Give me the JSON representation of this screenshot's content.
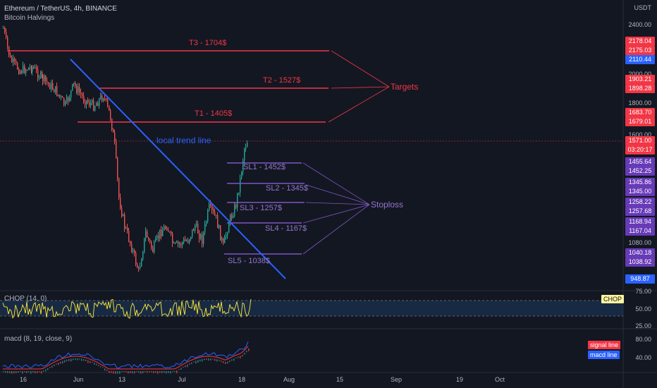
{
  "header": {
    "symbol_line": "Ethereum / TetherUS, 4h, BINANCE",
    "indicator_line": "Bitcoin Halvings"
  },
  "price_axis": {
    "unit": "USDT",
    "ticks": [
      "2400.00",
      "2000.00",
      "1800.00",
      "1600.00",
      "1080.00"
    ]
  },
  "price_badges": [
    {
      "label": "2178.04",
      "color": "#f23645"
    },
    {
      "label": "2175.03",
      "color": "#f23645"
    },
    {
      "label": "2110.44",
      "color": "#2962ff"
    },
    {
      "label": "1903.21",
      "color": "#f23645"
    },
    {
      "label": "1898.28",
      "color": "#f23645"
    },
    {
      "label": "1683.70",
      "color": "#f23645"
    },
    {
      "label": "1679.01",
      "color": "#f23645"
    },
    {
      "label": "1571.00",
      "color": "#f23645"
    },
    {
      "label": "03:20:17",
      "color": "#f23645"
    },
    {
      "label": "1455.64",
      "color": "#673ab7"
    },
    {
      "label": "1452.25",
      "color": "#673ab7"
    },
    {
      "label": "1345.86",
      "color": "#673ab7"
    },
    {
      "label": "1345.00",
      "color": "#673ab7"
    },
    {
      "label": "1258.22",
      "color": "#673ab7"
    },
    {
      "label": "1257.68",
      "color": "#673ab7"
    },
    {
      "label": "1168.94",
      "color": "#673ab7"
    },
    {
      "label": "1167.04",
      "color": "#673ab7"
    },
    {
      "label": "1040.18",
      "color": "#673ab7"
    },
    {
      "label": "1038.92",
      "color": "#673ab7"
    },
    {
      "label": "948.87",
      "color": "#2962ff"
    }
  ],
  "targets": [
    {
      "label": "T3 - 1704$"
    },
    {
      "label": "T2 - 1527$"
    },
    {
      "label": "T1 - 1405$"
    }
  ],
  "targets_label": "Targets",
  "stoplosses": [
    {
      "label": "SL1 - 1452$"
    },
    {
      "label": "SL2 - 1345$"
    },
    {
      "label": "SL3 - 1257$"
    },
    {
      "label": "SL4 - 1167$"
    },
    {
      "label": "SL5 - 1038$"
    }
  ],
  "stoploss_label": "Stoploss",
  "trend_label": "local trend line",
  "chop": {
    "title": "CHOP (14, 0)",
    "badge": "CHOP",
    "ticks": [
      "75.00",
      "50.00",
      "25.00"
    ]
  },
  "macd": {
    "title": "macd (8, 19, close, 9)",
    "signal_label": "signal line",
    "macd_label": "macd line",
    "ticks": [
      "80.00",
      "40.00"
    ]
  },
  "time_axis": [
    "16",
    "Jun",
    "13",
    "Jul",
    "18",
    "Aug",
    "15",
    "Sep",
    "19",
    "Oct"
  ],
  "colors": {
    "up": "#26a69a",
    "down": "#ef5350",
    "target": "#f23645",
    "stoploss": "#7e57c2",
    "trend": "#2962ff"
  }
}
